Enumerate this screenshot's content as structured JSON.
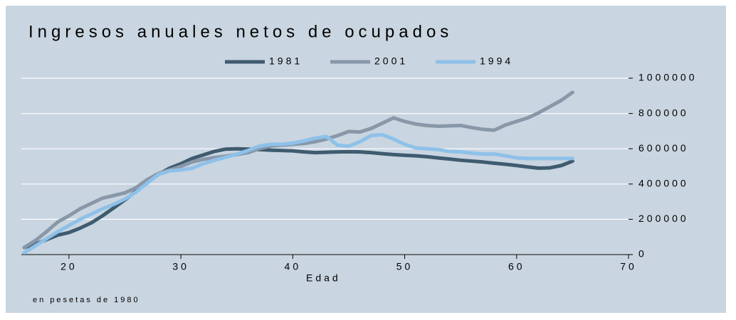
{
  "chart_data": {
    "type": "line",
    "title": "Ingresos anuales netos de ocupados",
    "xlabel": "Edad",
    "note": "en pesetas de 1980",
    "x": [
      16,
      17,
      18,
      19,
      20,
      21,
      22,
      23,
      24,
      25,
      26,
      27,
      28,
      29,
      30,
      31,
      32,
      33,
      34,
      35,
      36,
      37,
      38,
      39,
      40,
      41,
      42,
      43,
      44,
      45,
      46,
      47,
      48,
      49,
      50,
      51,
      52,
      53,
      54,
      55,
      56,
      57,
      58,
      59,
      60,
      61,
      62,
      63,
      64,
      65
    ],
    "series": [
      {
        "name": "1981",
        "color": "#3f5b6f",
        "values": [
          40000,
          60000,
          85000,
          110000,
          125000,
          150000,
          180000,
          220000,
          265000,
          310000,
          360000,
          410000,
          455000,
          490000,
          515000,
          545000,
          565000,
          585000,
          598000,
          600000,
          598000,
          595000,
          592000,
          590000,
          588000,
          582000,
          578000,
          580000,
          582000,
          583000,
          582000,
          578000,
          572000,
          567000,
          563000,
          560000,
          555000,
          548000,
          542000,
          535000,
          530000,
          525000,
          518000,
          512000,
          505000,
          497000,
          490000,
          492000,
          505000,
          530000
        ]
      },
      {
        "name": "2001",
        "color": "#8898a9",
        "values": [
          40000,
          80000,
          130000,
          185000,
          220000,
          260000,
          290000,
          320000,
          335000,
          350000,
          380000,
          425000,
          460000,
          480000,
          500000,
          525000,
          540000,
          550000,
          558000,
          568000,
          578000,
          600000,
          615000,
          620000,
          625000,
          630000,
          640000,
          655000,
          675000,
          698000,
          695000,
          715000,
          745000,
          775000,
          755000,
          740000,
          732000,
          728000,
          730000,
          732000,
          720000,
          710000,
          705000,
          735000,
          755000,
          775000,
          805000,
          840000,
          875000,
          920000
        ]
      },
      {
        "name": "1994",
        "color": "#8ec1e9",
        "values": [
          10000,
          50000,
          90000,
          130000,
          165000,
          200000,
          230000,
          260000,
          285000,
          315000,
          355000,
          405000,
          455000,
          475000,
          480000,
          490000,
          515000,
          535000,
          552000,
          570000,
          590000,
          615000,
          625000,
          625000,
          632000,
          645000,
          660000,
          670000,
          620000,
          615000,
          640000,
          675000,
          680000,
          655000,
          625000,
          605000,
          600000,
          595000,
          585000,
          582000,
          575000,
          570000,
          570000,
          560000,
          548000,
          545000,
          545000,
          545000,
          545000,
          545000
        ]
      }
    ],
    "xlim": [
      16,
      70
    ],
    "xticks": [
      20,
      30,
      40,
      50,
      60,
      70
    ],
    "ylim": [
      0,
      1000000
    ],
    "yticks": [
      0,
      200000,
      400000,
      600000,
      800000,
      1000000
    ],
    "grid": true,
    "legend": "top"
  }
}
